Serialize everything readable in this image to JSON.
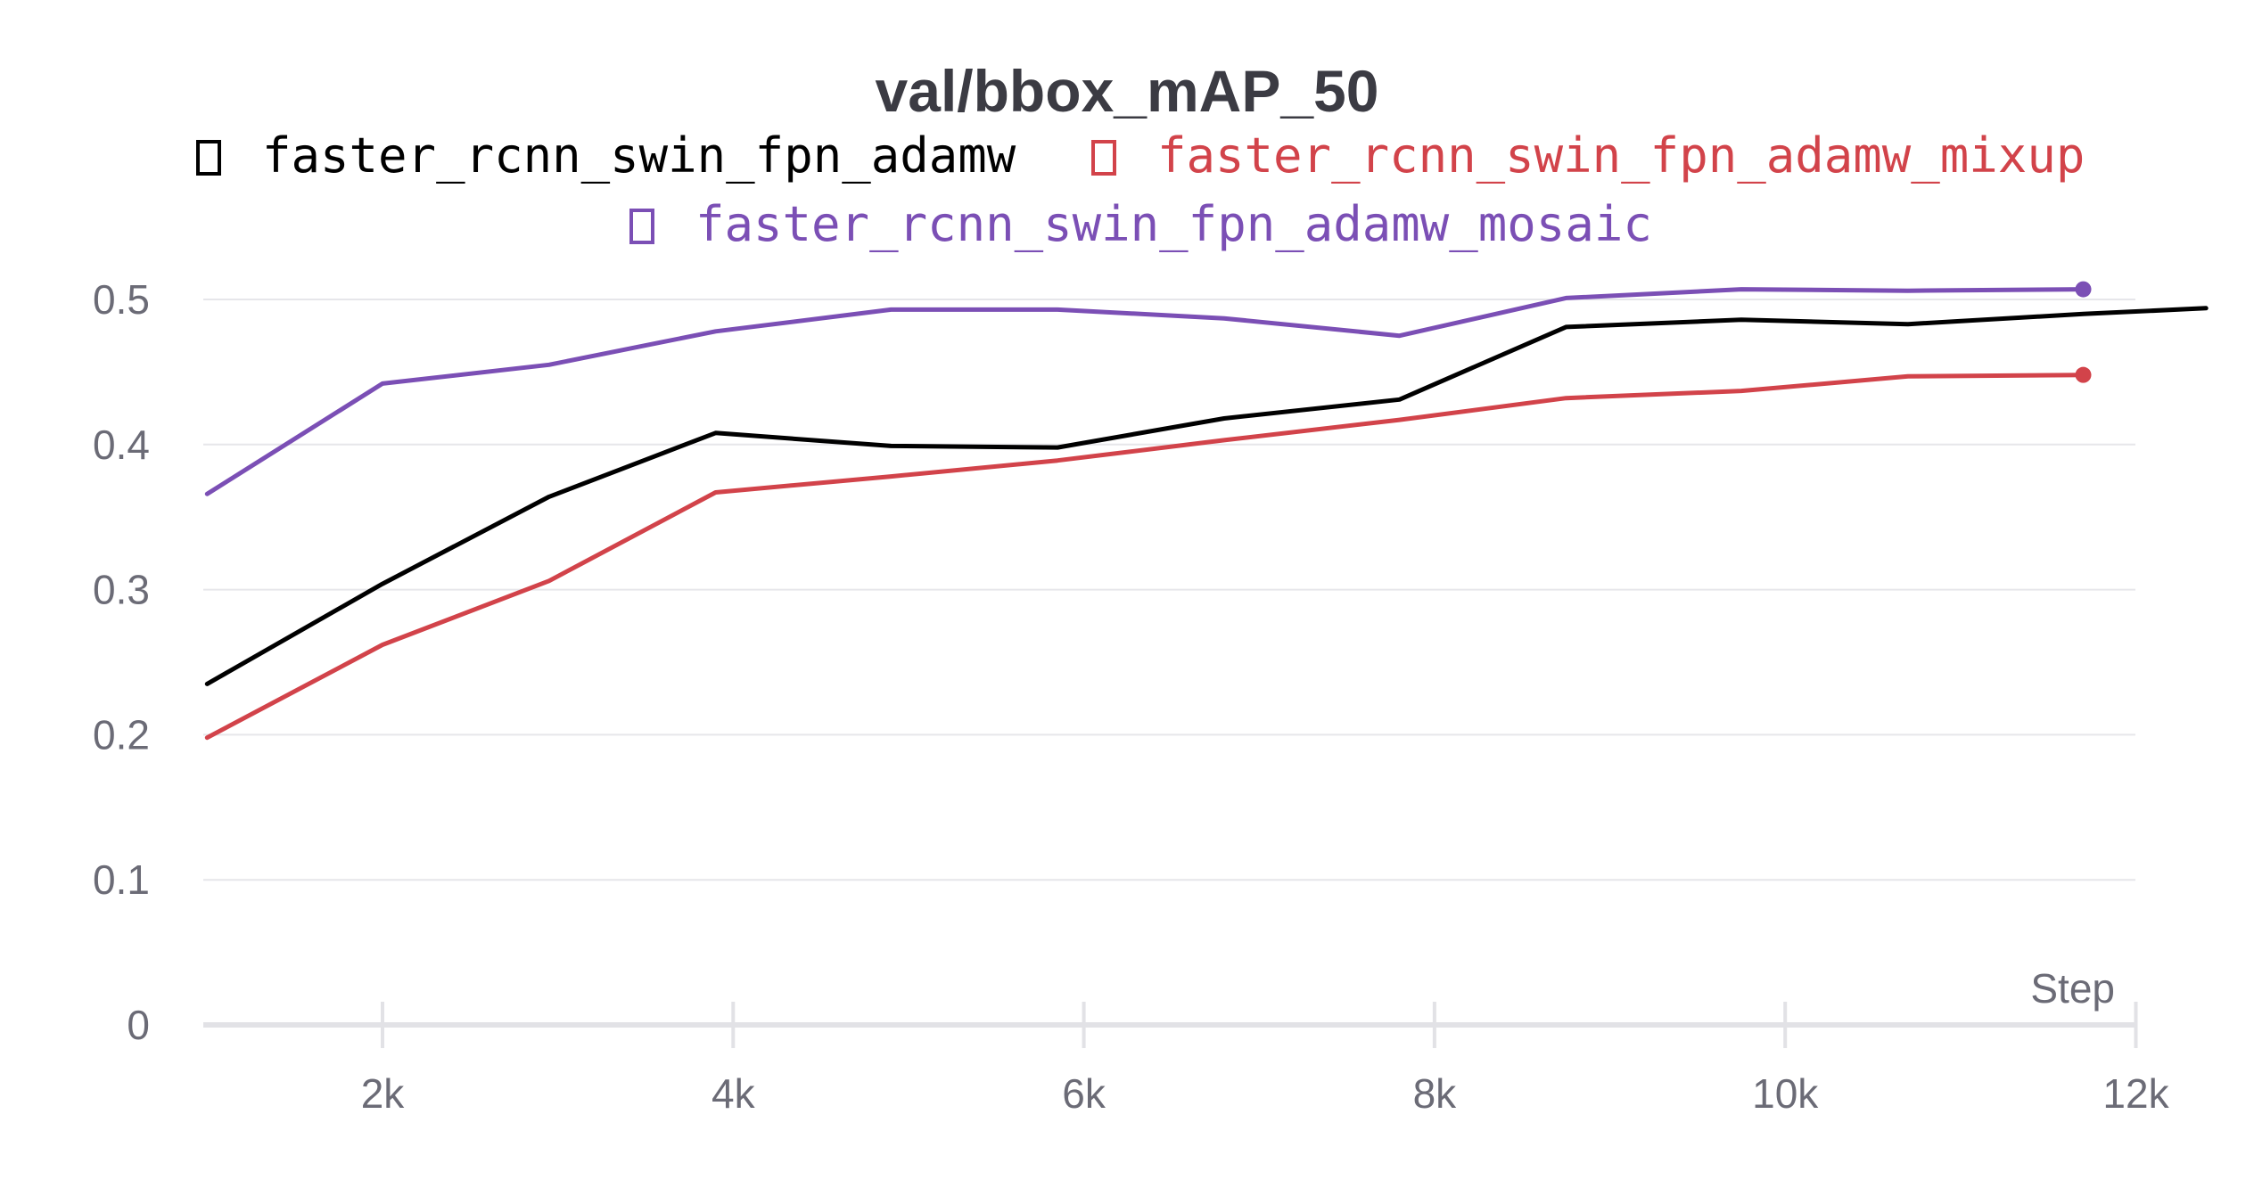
{
  "chart_data": {
    "type": "line",
    "title": "val/bbox_mAP_50",
    "xlabel": "Step",
    "ylabel": "",
    "xlim": [
      1000,
      12000
    ],
    "ylim": [
      0,
      0.52
    ],
    "x_ticks": [
      "2k",
      "4k",
      "6k",
      "8k",
      "10k",
      "12k"
    ],
    "y_ticks": [
      "0",
      "0.1",
      "0.2",
      "0.3",
      "0.4",
      "0.5"
    ],
    "grid": true,
    "legend_position": "top",
    "series": [
      {
        "name": "faster_rcnn_swin_fpn_adamw",
        "color": "#000000",
        "x": [
          1000,
          2000,
          2950,
          3900,
          4900,
          5850,
          6800,
          7800,
          8750,
          9750,
          10700,
          11700,
          12400
        ],
        "y": [
          0.235,
          0.304,
          0.364,
          0.408,
          0.399,
          0.398,
          0.418,
          0.431,
          0.481,
          0.486,
          0.483,
          0.49,
          0.494
        ],
        "end_marker": false
      },
      {
        "name": "faster_rcnn_swin_fpn_adamw_mixup",
        "color": "#d2434a",
        "x": [
          1000,
          2000,
          2950,
          3900,
          4900,
          5850,
          6800,
          7800,
          8750,
          9750,
          10700,
          11700
        ],
        "y": [
          0.198,
          0.262,
          0.306,
          0.367,
          0.378,
          0.389,
          0.403,
          0.417,
          0.432,
          0.437,
          0.447,
          0.448
        ],
        "end_marker": true
      },
      {
        "name": "faster_rcnn_swin_fpn_adamw_mosaic",
        "color": "#7b4fb5",
        "x": [
          1000,
          2000,
          2950,
          3900,
          4900,
          5850,
          6800,
          7800,
          8750,
          9750,
          10700,
          11700
        ],
        "y": [
          0.366,
          0.442,
          0.455,
          0.478,
          0.493,
          0.493,
          0.487,
          0.475,
          0.501,
          0.507,
          0.506,
          0.507
        ],
        "end_marker": true
      }
    ]
  }
}
